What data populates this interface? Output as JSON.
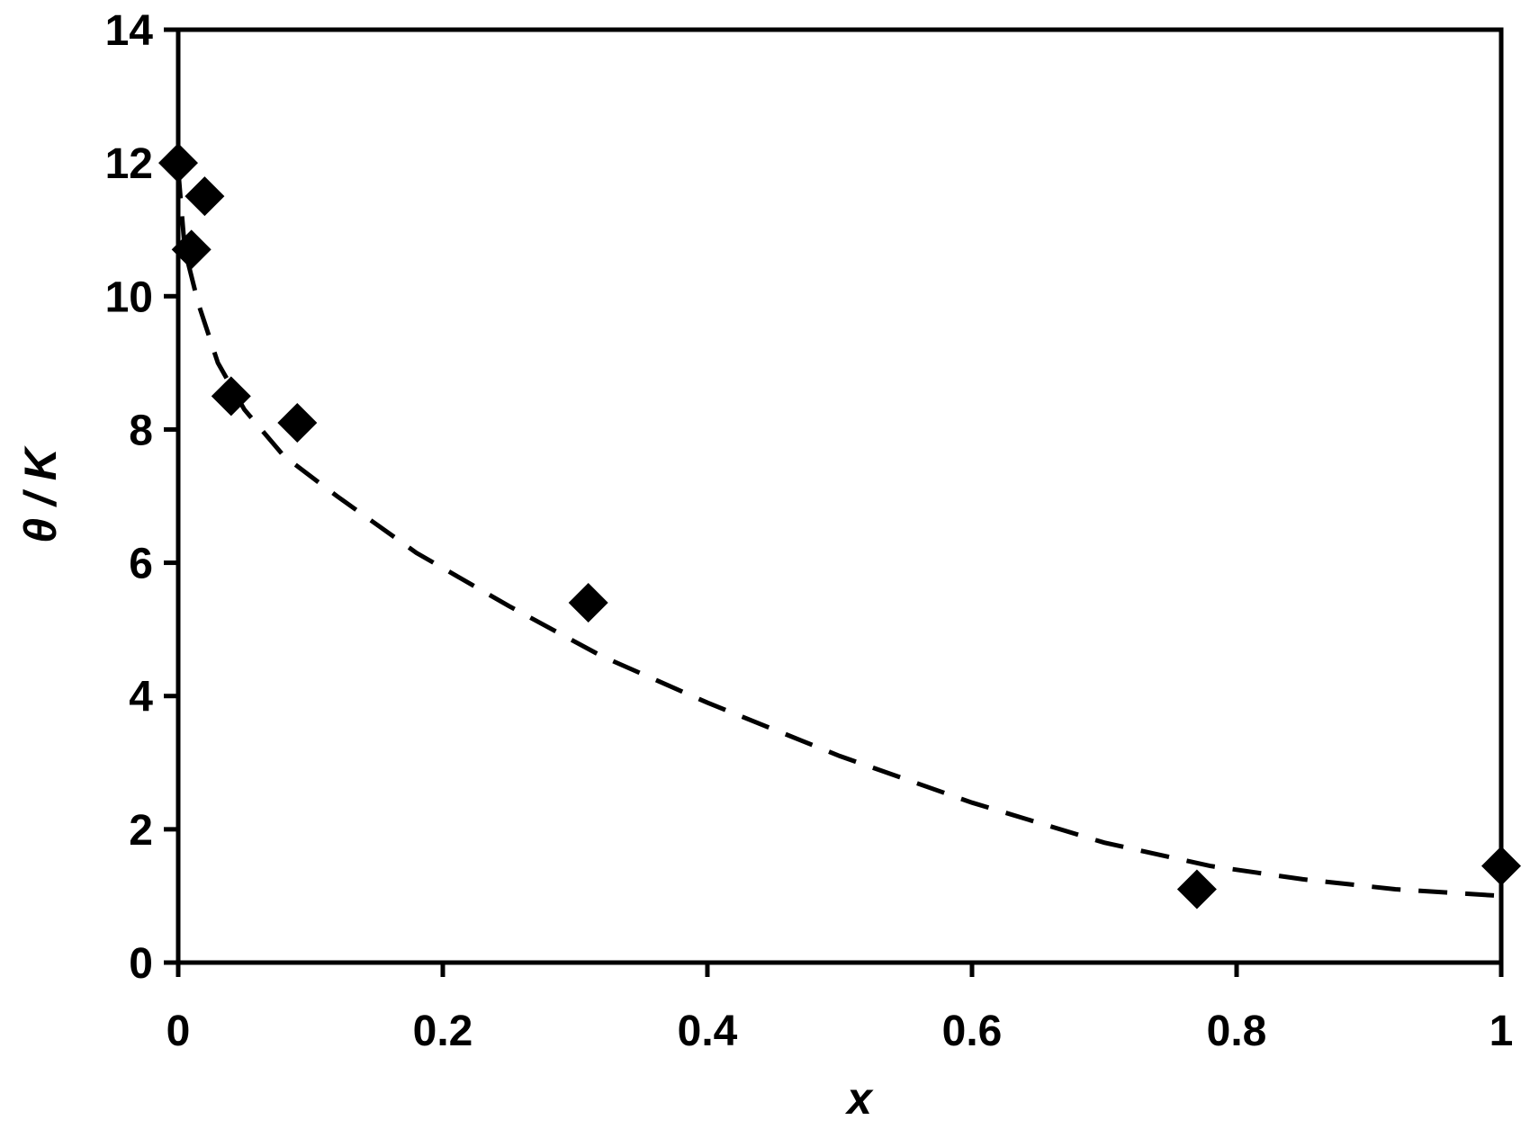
{
  "chart_data": {
    "type": "scatter",
    "title": "",
    "xlabel": "x",
    "ylabel": "θ / K",
    "xlim": [
      0,
      1
    ],
    "ylim": [
      0,
      14
    ],
    "xticks": [
      "0",
      "0.2",
      "0.4",
      "0.6",
      "0.8",
      "1"
    ],
    "yticks": [
      "0",
      "2",
      "4",
      "6",
      "8",
      "10",
      "12",
      "14"
    ],
    "grid": false,
    "legend": "none",
    "series": [
      {
        "marker": "diamond",
        "color": "#000000",
        "points": [
          {
            "x": 0.0,
            "y": 12.0
          },
          {
            "x": 0.01,
            "y": 10.7
          },
          {
            "x": 0.02,
            "y": 11.5
          },
          {
            "x": 0.04,
            "y": 8.5
          },
          {
            "x": 0.09,
            "y": 8.1
          },
          {
            "x": 0.31,
            "y": 5.4
          },
          {
            "x": 0.77,
            "y": 1.1
          },
          {
            "x": 1.0,
            "y": 1.45
          }
        ]
      },
      {
        "line_style": "dashed",
        "color": "#000000",
        "points": [
          {
            "x": 0.0,
            "y": 11.9
          },
          {
            "x": 0.005,
            "y": 10.7
          },
          {
            "x": 0.015,
            "y": 9.9
          },
          {
            "x": 0.03,
            "y": 9.0
          },
          {
            "x": 0.05,
            "y": 8.3
          },
          {
            "x": 0.08,
            "y": 7.6
          },
          {
            "x": 0.12,
            "y": 7.0
          },
          {
            "x": 0.18,
            "y": 6.15
          },
          {
            "x": 0.25,
            "y": 5.35
          },
          {
            "x": 0.32,
            "y": 4.6
          },
          {
            "x": 0.4,
            "y": 3.9
          },
          {
            "x": 0.5,
            "y": 3.1
          },
          {
            "x": 0.6,
            "y": 2.4
          },
          {
            "x": 0.7,
            "y": 1.8
          },
          {
            "x": 0.78,
            "y": 1.45
          },
          {
            "x": 0.85,
            "y": 1.25
          },
          {
            "x": 0.92,
            "y": 1.1
          },
          {
            "x": 1.0,
            "y": 1.0
          }
        ]
      }
    ]
  }
}
